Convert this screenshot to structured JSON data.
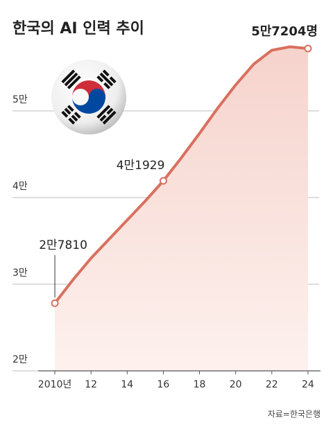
{
  "chart_data": {
    "type": "line",
    "title": "한국의 AI 인력 추이",
    "source": "자료=한국은행",
    "x": [
      2010,
      2011,
      2012,
      2013,
      2014,
      2015,
      2016,
      2017,
      2018,
      2019,
      2020,
      2021,
      2022,
      2023,
      2024
    ],
    "series": [
      {
        "color": "#d9705f",
        "values": [
          27810,
          30500,
          33000,
          35200,
          37400,
          39600,
          41929,
          44600,
          47400,
          50300,
          53000,
          55400,
          57000,
          57400,
          57204
        ],
        "value_labels": [
          "2만7810",
          null,
          null,
          null,
          null,
          null,
          "4만1929",
          null,
          null,
          null,
          null,
          null,
          null,
          null,
          "5만7204명"
        ]
      }
    ],
    "xlim": [
      2009,
      2025
    ],
    "xticks": [
      {
        "value": 2010,
        "label": "2010년"
      },
      {
        "value": 2012,
        "label": "12"
      },
      {
        "value": 2014,
        "label": "14"
      },
      {
        "value": 2016,
        "label": "16"
      },
      {
        "value": 2018,
        "label": "18"
      },
      {
        "value": 2020,
        "label": "20"
      },
      {
        "value": 2022,
        "label": "22"
      },
      {
        "value": 2024,
        "label": "24"
      }
    ],
    "ylim": [
      20000,
      60000
    ],
    "yticks": [
      {
        "value": 20000,
        "label": "2만"
      },
      {
        "value": 30000,
        "label": "3만"
      },
      {
        "value": 40000,
        "label": "4만"
      },
      {
        "value": 50000,
        "label": "5만"
      }
    ],
    "grid": true
  }
}
